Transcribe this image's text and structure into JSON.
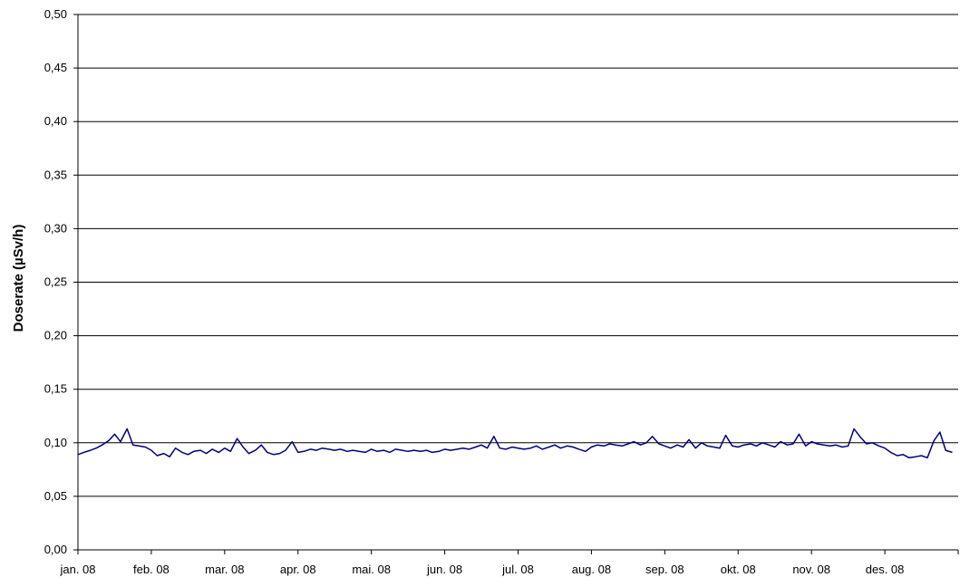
{
  "chart_data": {
    "type": "line",
    "title": "",
    "xlabel": "",
    "ylabel": "Doserate (µSv/h)",
    "ylim": [
      0,
      0.5
    ],
    "grid": "horizontal",
    "legend": "none",
    "y_ticks": [
      "0,00",
      "0,05",
      "0,10",
      "0,15",
      "0,20",
      "0,25",
      "0,30",
      "0,35",
      "0,40",
      "0,45",
      "0,50"
    ],
    "x_ticks": [
      "jan. 08",
      "feb. 08",
      "mar. 08",
      "apr. 08",
      "mai. 08",
      "jun. 08",
      "jul. 08",
      "aug. 08",
      "sep. 08",
      "okt. 08",
      "nov. 08",
      "des. 08"
    ],
    "x_unit": "month",
    "line_color": "#000080",
    "series": [
      {
        "x": [
          0.0,
          0.08,
          0.17,
          0.25,
          0.33,
          0.42,
          0.5,
          0.58,
          0.67,
          0.75,
          0.83,
          0.92,
          1.0,
          1.08,
          1.17,
          1.25,
          1.33,
          1.42,
          1.5,
          1.58,
          1.67,
          1.75,
          1.83,
          1.92,
          2.0,
          2.08,
          2.17,
          2.25,
          2.33,
          2.42,
          2.5,
          2.58,
          2.67,
          2.75,
          2.83,
          2.92,
          3.0,
          3.08,
          3.17,
          3.25,
          3.33,
          3.42,
          3.5,
          3.58,
          3.67,
          3.75,
          3.83,
          3.92,
          4.0,
          4.08,
          4.17,
          4.25,
          4.33,
          4.42,
          4.5,
          4.58,
          4.67,
          4.75,
          4.83,
          4.92,
          5.0,
          5.08,
          5.17,
          5.25,
          5.33,
          5.42,
          5.5,
          5.58,
          5.67,
          5.75,
          5.83,
          5.92,
          6.0,
          6.08,
          6.17,
          6.25,
          6.33,
          6.42,
          6.5,
          6.58,
          6.67,
          6.75,
          6.83,
          6.92,
          7.0,
          7.08,
          7.17,
          7.25,
          7.33,
          7.42,
          7.5,
          7.58,
          7.67,
          7.75,
          7.83,
          7.92,
          8.0,
          8.08,
          8.17,
          8.25,
          8.33,
          8.42,
          8.5,
          8.58,
          8.67,
          8.75,
          8.83,
          8.92,
          9.0,
          9.08,
          9.17,
          9.25,
          9.33,
          9.42,
          9.5,
          9.58,
          9.67,
          9.75,
          9.83,
          9.92,
          10.0,
          10.08,
          10.17,
          10.25,
          10.33,
          10.42,
          10.5,
          10.58,
          10.67,
          10.75,
          10.83,
          10.92,
          11.0,
          11.08,
          11.17,
          11.25,
          11.33,
          11.42,
          11.5,
          11.58,
          11.67,
          11.75,
          11.83,
          11.92
        ],
        "y": [
          0.089,
          0.091,
          0.093,
          0.095,
          0.098,
          0.102,
          0.108,
          0.101,
          0.113,
          0.098,
          0.097,
          0.096,
          0.093,
          0.088,
          0.09,
          0.087,
          0.095,
          0.091,
          0.089,
          0.092,
          0.093,
          0.09,
          0.094,
          0.091,
          0.095,
          0.092,
          0.104,
          0.096,
          0.09,
          0.093,
          0.098,
          0.091,
          0.089,
          0.09,
          0.093,
          0.101,
          0.091,
          0.092,
          0.094,
          0.093,
          0.095,
          0.094,
          0.093,
          0.094,
          0.092,
          0.093,
          0.092,
          0.091,
          0.094,
          0.092,
          0.093,
          0.091,
          0.094,
          0.093,
          0.092,
          0.093,
          0.092,
          0.093,
          0.091,
          0.092,
          0.094,
          0.093,
          0.094,
          0.095,
          0.094,
          0.096,
          0.098,
          0.095,
          0.106,
          0.095,
          0.094,
          0.096,
          0.095,
          0.094,
          0.095,
          0.097,
          0.094,
          0.096,
          0.098,
          0.095,
          0.097,
          0.096,
          0.094,
          0.092,
          0.096,
          0.098,
          0.097,
          0.099,
          0.098,
          0.097,
          0.099,
          0.101,
          0.098,
          0.1,
          0.106,
          0.099,
          0.097,
          0.095,
          0.098,
          0.096,
          0.103,
          0.095,
          0.1,
          0.097,
          0.096,
          0.095,
          0.107,
          0.097,
          0.096,
          0.098,
          0.099,
          0.097,
          0.1,
          0.098,
          0.096,
          0.101,
          0.098,
          0.099,
          0.108,
          0.097,
          0.101,
          0.099,
          0.098,
          0.097,
          0.098,
          0.096,
          0.097,
          0.113,
          0.105,
          0.099,
          0.1,
          0.097,
          0.095,
          0.091,
          0.088,
          0.089,
          0.086,
          0.087,
          0.088,
          0.086,
          0.102,
          0.11,
          0.093,
          0.091
        ]
      }
    ]
  }
}
